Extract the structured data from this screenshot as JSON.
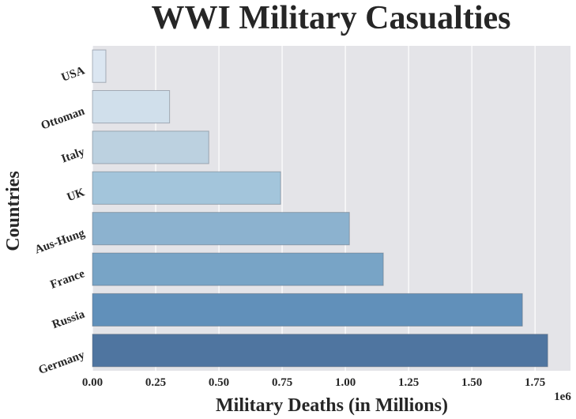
{
  "chart_data": {
    "type": "bar",
    "orientation": "horizontal",
    "title": "WWI Military Casualties",
    "xlabel": "Military Deaths (in Millions)",
    "ylabel": "Countries",
    "x_offset_label": "1e6",
    "categories": [
      "USA",
      "Ottoman",
      "Italy",
      "UK",
      "Aus-Hung",
      "France",
      "Russia",
      "Germany"
    ],
    "values": [
      53000,
      305000,
      460000,
      744000,
      1016000,
      1150000,
      1700000,
      1800000
    ],
    "xlim": [
      0,
      1890000
    ],
    "xticks": [
      0,
      250000,
      500000,
      750000,
      1000000,
      1250000,
      1500000,
      1750000
    ],
    "xtick_labels": [
      "0.00",
      "0.25",
      "0.50",
      "0.75",
      "1.00",
      "1.25",
      "1.50",
      "1.75"
    ],
    "grid": true,
    "colors": [
      "#dbe6f1",
      "#d0dfeb",
      "#bcd1e0",
      "#a3c5db",
      "#8cb2cf",
      "#78a4c6",
      "#6190ba",
      "#4f75a0"
    ],
    "background": "#e4e4e8",
    "gridline_color": "#ffffff"
  }
}
